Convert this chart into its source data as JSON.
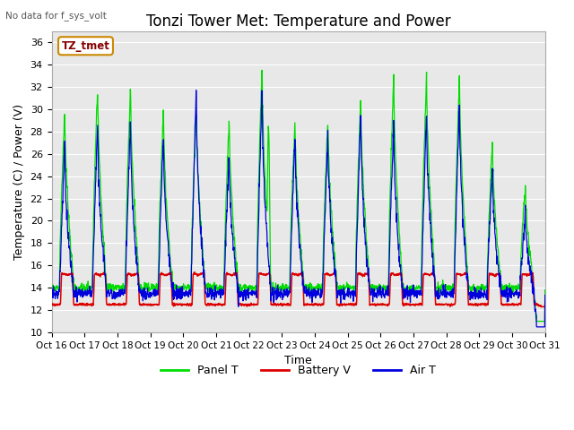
{
  "title": "Tonzi Tower Met: Temperature and Power",
  "subtitle": "No data for f_sys_volt",
  "xlabel": "Time",
  "ylabel": "Temperature (C) / Power (V)",
  "ylim": [
    10,
    37
  ],
  "yticks": [
    10,
    12,
    14,
    16,
    18,
    20,
    22,
    24,
    26,
    28,
    30,
    32,
    34,
    36
  ],
  "xtick_labels": [
    "Oct 16",
    "Oct 17",
    "Oct 18",
    "Oct 19",
    "Oct 20",
    "Oct 21",
    "Oct 22",
    "Oct 23",
    "Oct 24",
    "Oct 25",
    "Oct 26",
    "Oct 27",
    "Oct 28",
    "Oct 29",
    "Oct 30",
    "Oct 31"
  ],
  "panel_color": "#00dd00",
  "battery_color": "#dd0000",
  "air_color": "#0000dd",
  "annotation_label": "TZ_tmet",
  "legend_labels": [
    "Panel T",
    "Battery V",
    "Air T"
  ],
  "background_color": "#ffffff",
  "plot_bg_color": "#e8e8e8",
  "grid_color": "#ffffff",
  "title_fontsize": 12,
  "axis_fontsize": 9,
  "n_days": 15,
  "pts_per_day": 120,
  "panel_peaks": [
    30,
    32,
    32,
    30,
    30,
    29,
    34,
    29,
    29,
    31,
    33,
    33,
    33,
    27,
    23
  ],
  "panel_peaks2": [
    0,
    0,
    0,
    0,
    0,
    0,
    35,
    0,
    0,
    0,
    0,
    0,
    0,
    0,
    0
  ],
  "air_peaks": [
    27,
    29,
    29,
    28,
    32,
    26,
    32,
    28,
    28,
    30,
    29,
    30,
    31,
    25,
    21
  ],
  "battery_peak": 15.2,
  "battery_base": 12.5,
  "panel_night": 14.0,
  "air_night": 13.5
}
